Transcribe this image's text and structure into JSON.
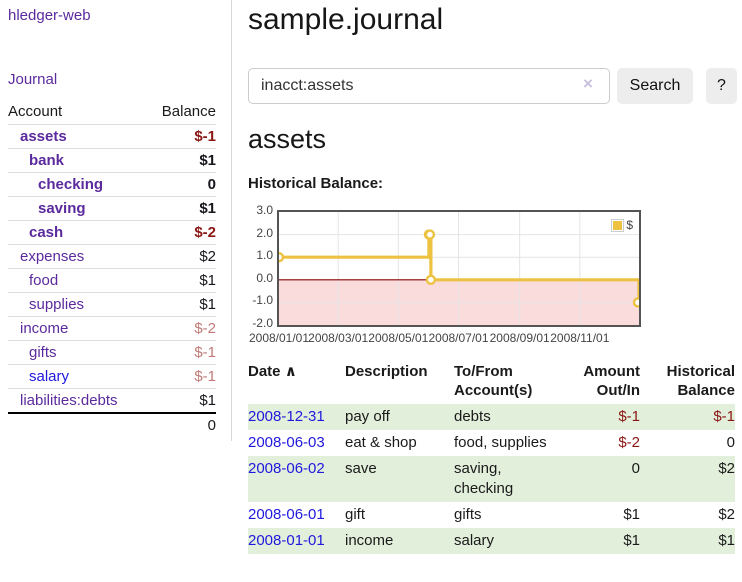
{
  "colors": {
    "purple": "#5b2a9d",
    "blue": "#2018dd",
    "neg": "#8b1713",
    "negfaint": "#c07a78",
    "rowgreen": "#e2efdb",
    "chartline": "#edc240",
    "pink": "#fadcdc",
    "zeroline": "#8b0000",
    "grid": "#e4e4e4"
  },
  "app": {
    "brand": "hledger-web"
  },
  "sidebar": {
    "journal_link": "Journal",
    "accounts": {
      "col_account": "Account",
      "col_balance": "Balance",
      "rows": [
        {
          "name": "assets",
          "depth": 1,
          "bold": true,
          "balance": "$-1",
          "balance_class": "neg"
        },
        {
          "name": "bank",
          "depth": 2,
          "bold": true,
          "balance": "$1",
          "balance_class": ""
        },
        {
          "name": "checking",
          "depth": 3,
          "bold": true,
          "balance": "0",
          "balance_class": ""
        },
        {
          "name": "saving",
          "depth": 3,
          "bold": true,
          "balance": "$1",
          "balance_class": ""
        },
        {
          "name": "cash",
          "depth": 2,
          "bold": true,
          "balance": "$-2",
          "balance_class": "neg"
        },
        {
          "name": "expenses",
          "depth": 1,
          "bold": false,
          "balance": "$2",
          "balance_class": ""
        },
        {
          "name": "food",
          "depth": 2,
          "bold": false,
          "balance": "$1",
          "balance_class": ""
        },
        {
          "name": "supplies",
          "depth": 2,
          "bold": false,
          "balance": "$1",
          "balance_class": ""
        },
        {
          "name": "income",
          "depth": 1,
          "bold": false,
          "balance": "$-2",
          "balance_class": "negfaint"
        },
        {
          "name": "gifts",
          "depth": 2,
          "bold": false,
          "balance": "$-1",
          "balance_class": "negfaint"
        },
        {
          "name": "salary",
          "depth": 2,
          "bold": false,
          "balance": "$-1",
          "balance_class": "negfaint",
          "link_blue": true
        },
        {
          "name": "liabilities:debts",
          "depth": 1,
          "bold": false,
          "balance": "$1",
          "balance_class": ""
        }
      ],
      "total": "0"
    }
  },
  "main": {
    "title": "sample.journal",
    "search": {
      "value": "inacct:assets",
      "clear_icon": "×",
      "button": "Search",
      "help": "?"
    },
    "account_heading": "assets",
    "section_label": "Historical Balance:"
  },
  "chart_data": {
    "type": "line",
    "step": true,
    "title": "Historical Balance:",
    "series": [
      {
        "name": "$",
        "color": "#edc240",
        "points": [
          {
            "date": "2008-01-01",
            "value": 1
          },
          {
            "date": "2008-06-01",
            "value": 2
          },
          {
            "date": "2008-06-02",
            "value": 2
          },
          {
            "date": "2008-06-03",
            "value": 0
          },
          {
            "date": "2008-12-31",
            "value": -1
          }
        ]
      }
    ],
    "xlim": [
      "2008-01-01",
      "2008-12-31"
    ],
    "ylim": [
      -2,
      3
    ],
    "yticks": [
      3.0,
      2.0,
      1.0,
      0.0,
      -1.0,
      -2.0
    ],
    "xticks": [
      "2008/01/01",
      "2008/03/01",
      "2008/05/01",
      "2008/07/01",
      "2008/09/01",
      "2008/11/01"
    ],
    "grid": true,
    "negative_region": true,
    "legend": {
      "label": "$",
      "position": "top-right"
    }
  },
  "register": {
    "headers": {
      "date": "Date",
      "sort_arrow": "∧",
      "description": "Description",
      "accounts_line1": "To/From",
      "accounts_line2": "Account(s)",
      "amount_line1": "Amount",
      "amount_line2": "Out/In",
      "balance_line1": "Historical",
      "balance_line2": "Balance"
    },
    "rows": [
      {
        "date": "2008-12-31",
        "description": "pay off",
        "accounts": "debts",
        "amount": "$-1",
        "amount_neg": true,
        "balance": "$-1",
        "balance_neg": true
      },
      {
        "date": "2008-06-03",
        "description": "eat & shop",
        "accounts": "food, supplies",
        "amount": "$-2",
        "amount_neg": true,
        "balance": "0",
        "balance_neg": false
      },
      {
        "date": "2008-06-02",
        "description": "save",
        "accounts": "saving, checking",
        "amount": "0",
        "amount_neg": false,
        "balance": "$2",
        "balance_neg": false
      },
      {
        "date": "2008-06-01",
        "description": "gift",
        "accounts": "gifts",
        "amount": "$1",
        "amount_neg": false,
        "balance": "$2",
        "balance_neg": false
      },
      {
        "date": "2008-01-01",
        "description": "income",
        "accounts": "salary",
        "amount": "$1",
        "amount_neg": false,
        "balance": "$1",
        "balance_neg": false
      }
    ]
  }
}
